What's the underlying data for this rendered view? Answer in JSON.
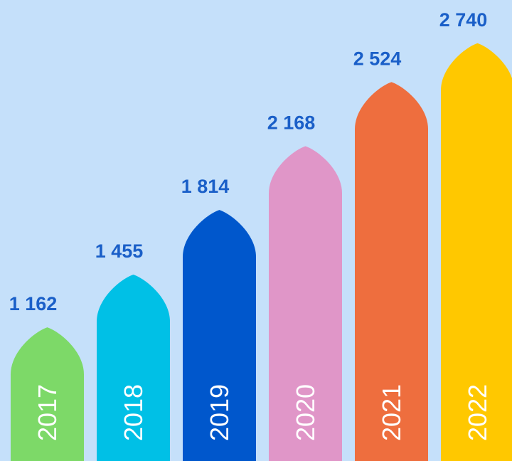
{
  "chart_data": {
    "type": "bar",
    "categories": [
      "2017",
      "2018",
      "2019",
      "2020",
      "2021",
      "2022"
    ],
    "values": [
      1162,
      1455,
      1814,
      2168,
      2524,
      2740
    ],
    "value_labels": [
      "1 162",
      "1 455",
      "1 814",
      "2 168",
      "2 524",
      "2 740"
    ],
    "colors": [
      "#7dd968",
      "#00c0e6",
      "#0057cc",
      "#e096c8",
      "#ee6e3e",
      "#ffc800"
    ],
    "ylim": [
      420,
      2980
    ]
  }
}
